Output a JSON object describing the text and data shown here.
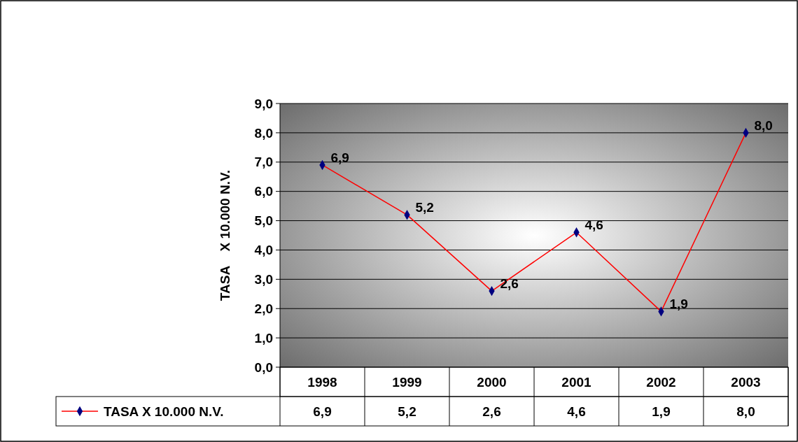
{
  "chart_data": {
    "type": "line",
    "ylabel": "TASA    X 10.000 N.V.",
    "categories": [
      "1998",
      "1999",
      "2000",
      "2001",
      "2002",
      "2003"
    ],
    "series": [
      {
        "name": "TASA X 10.000 N.V.",
        "color": "#ff0000",
        "values": [
          6.9,
          5.2,
          2.6,
          4.6,
          1.9,
          8.0
        ],
        "value_labels": [
          "6,9",
          "5,2",
          "2,6",
          "4,6",
          "1,9",
          "8,0"
        ]
      }
    ],
    "ylim": [
      0,
      9
    ],
    "yticks": [
      {
        "value": 0,
        "label": "0,0"
      },
      {
        "value": 1,
        "label": "1,0"
      },
      {
        "value": 2,
        "label": "2,0"
      },
      {
        "value": 3,
        "label": "3,0"
      },
      {
        "value": 4,
        "label": "4,0"
      },
      {
        "value": 5,
        "label": "5,0"
      },
      {
        "value": 6,
        "label": "6,0"
      },
      {
        "value": 7,
        "label": "7,0"
      },
      {
        "value": 8,
        "label": "8,0"
      },
      {
        "value": 9,
        "label": "9,0"
      }
    ],
    "grid": "y",
    "marker": "diamond",
    "line_style": "solid",
    "legend": "bottom"
  }
}
